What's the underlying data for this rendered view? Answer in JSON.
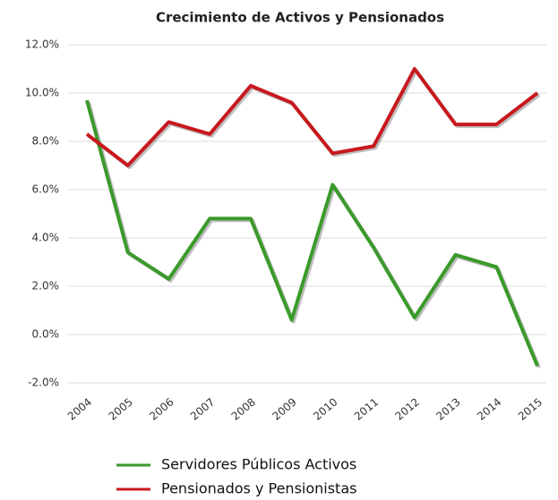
{
  "chart_data": {
    "type": "line",
    "title": "Crecimiento de Activos y Pensionados",
    "categories": [
      "2004",
      "2005",
      "2006",
      "2007",
      "2008",
      "2009",
      "2010",
      "2011",
      "2012",
      "2013",
      "2014",
      "2015"
    ],
    "series": [
      {
        "name": "Servidores Públicos Activos",
        "color": "#3a9a2a",
        "values": [
          9.7,
          3.4,
          2.3,
          4.8,
          4.8,
          0.6,
          6.2,
          3.6,
          0.7,
          3.3,
          2.8,
          -1.3
        ]
      },
      {
        "name": "Pensionados y Pensionistas",
        "color": "#c8191e",
        "values": [
          8.3,
          7.0,
          8.8,
          8.3,
          10.3,
          9.6,
          7.5,
          7.8,
          11.0,
          8.7,
          8.7,
          10.0
        ]
      }
    ],
    "ylim": [
      -2,
      12
    ],
    "yticks": [
      {
        "value": -2,
        "label": "-2.0%"
      },
      {
        "value": 0,
        "label": "0.0%"
      },
      {
        "value": 2,
        "label": "2.0%"
      },
      {
        "value": 4,
        "label": "4.0%"
      },
      {
        "value": 6,
        "label": "6.0%"
      },
      {
        "value": 8,
        "label": "8.0%"
      },
      {
        "value": 10,
        "label": "10.0%"
      },
      {
        "value": 12,
        "label": "12.0%"
      }
    ],
    "grid": true,
    "legend": "bottom"
  }
}
